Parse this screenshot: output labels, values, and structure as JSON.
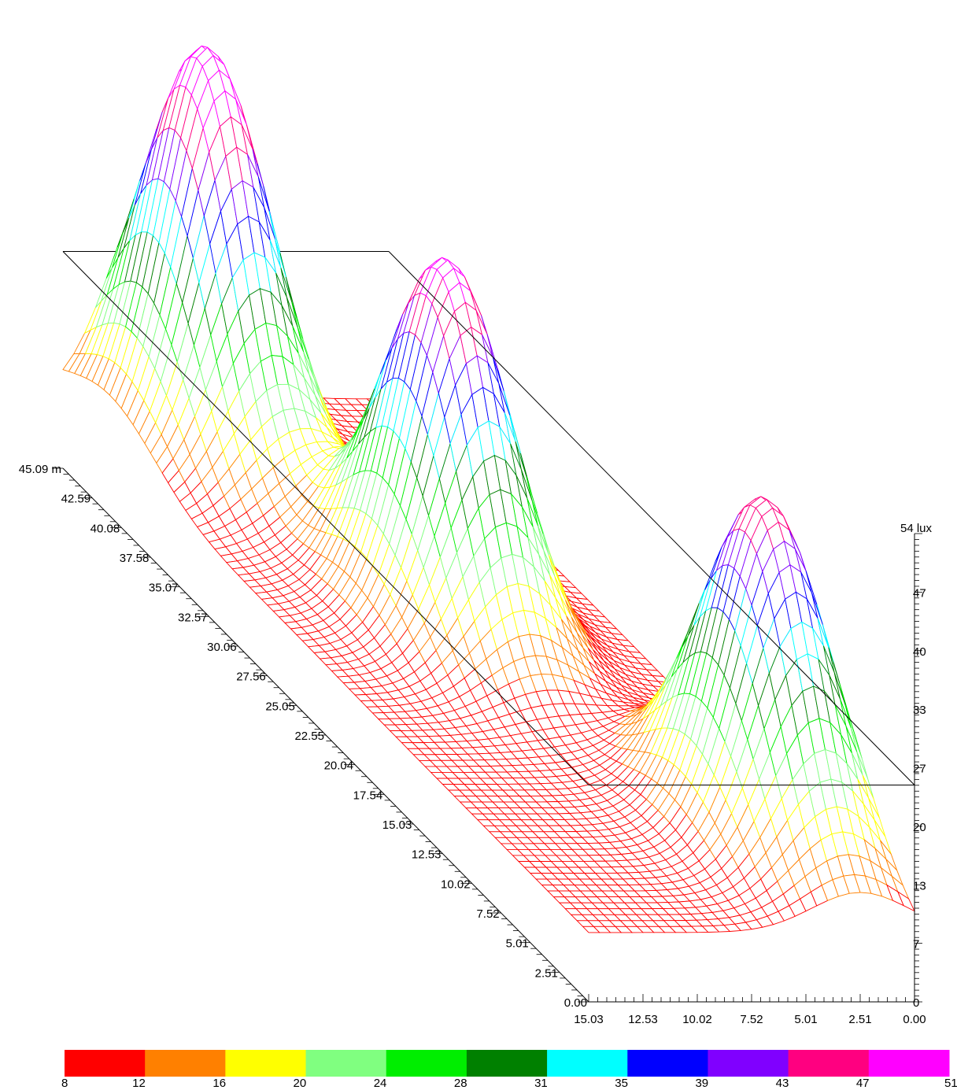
{
  "chart_data": {
    "type": "surface-3d",
    "z_unit_label": "54 lux",
    "z_ticks": [
      "0",
      "7",
      "13",
      "20",
      "27",
      "33",
      "40",
      "47"
    ],
    "z_range": [
      0,
      54
    ],
    "depth_axis_ticks": [
      "0.00",
      "2.51",
      "5.01",
      "7.52",
      "10.02",
      "12.53",
      "15.03",
      "17.54",
      "20.04",
      "22.55",
      "25.05",
      "27.56",
      "30.06",
      "32.57",
      "35.07",
      "37.58",
      "40.08",
      "42.59",
      "45.09 m"
    ],
    "depth_range": [
      0,
      45.09
    ],
    "width_axis_ticks": [
      "15.03",
      "12.53",
      "10.02",
      "7.52",
      "5.01",
      "2.51",
      "0.00"
    ],
    "width_range": [
      0,
      15.03
    ],
    "reference_plane_level": 25,
    "peaks": [
      {
        "x": 10.5,
        "y": 41.0,
        "value": 54
      },
      {
        "x": 7.5,
        "y": 26.0,
        "value": 50
      },
      {
        "x": 2.5,
        "y": 8.0,
        "value": 47
      }
    ],
    "colorbar": {
      "labels": [
        "8",
        "12",
        "16",
        "20",
        "24",
        "28",
        "31",
        "35",
        "39",
        "43",
        "47",
        "51"
      ],
      "colors": [
        "#ff0000",
        "#ff8000",
        "#ffff00",
        "#80ff80",
        "#00ee00",
        "#008000",
        "#00ffff",
        "#0000ff",
        "#8000ff",
        "#ff0080",
        "#ff00ff"
      ]
    },
    "surface_colors": [
      "#ff0000",
      "#ff8000",
      "#ffff00",
      "#80ff80",
      "#00ee00",
      "#008000",
      "#00ffff",
      "#0000ff",
      "#8000ff",
      "#ff0080",
      "#ff00ff"
    ]
  }
}
